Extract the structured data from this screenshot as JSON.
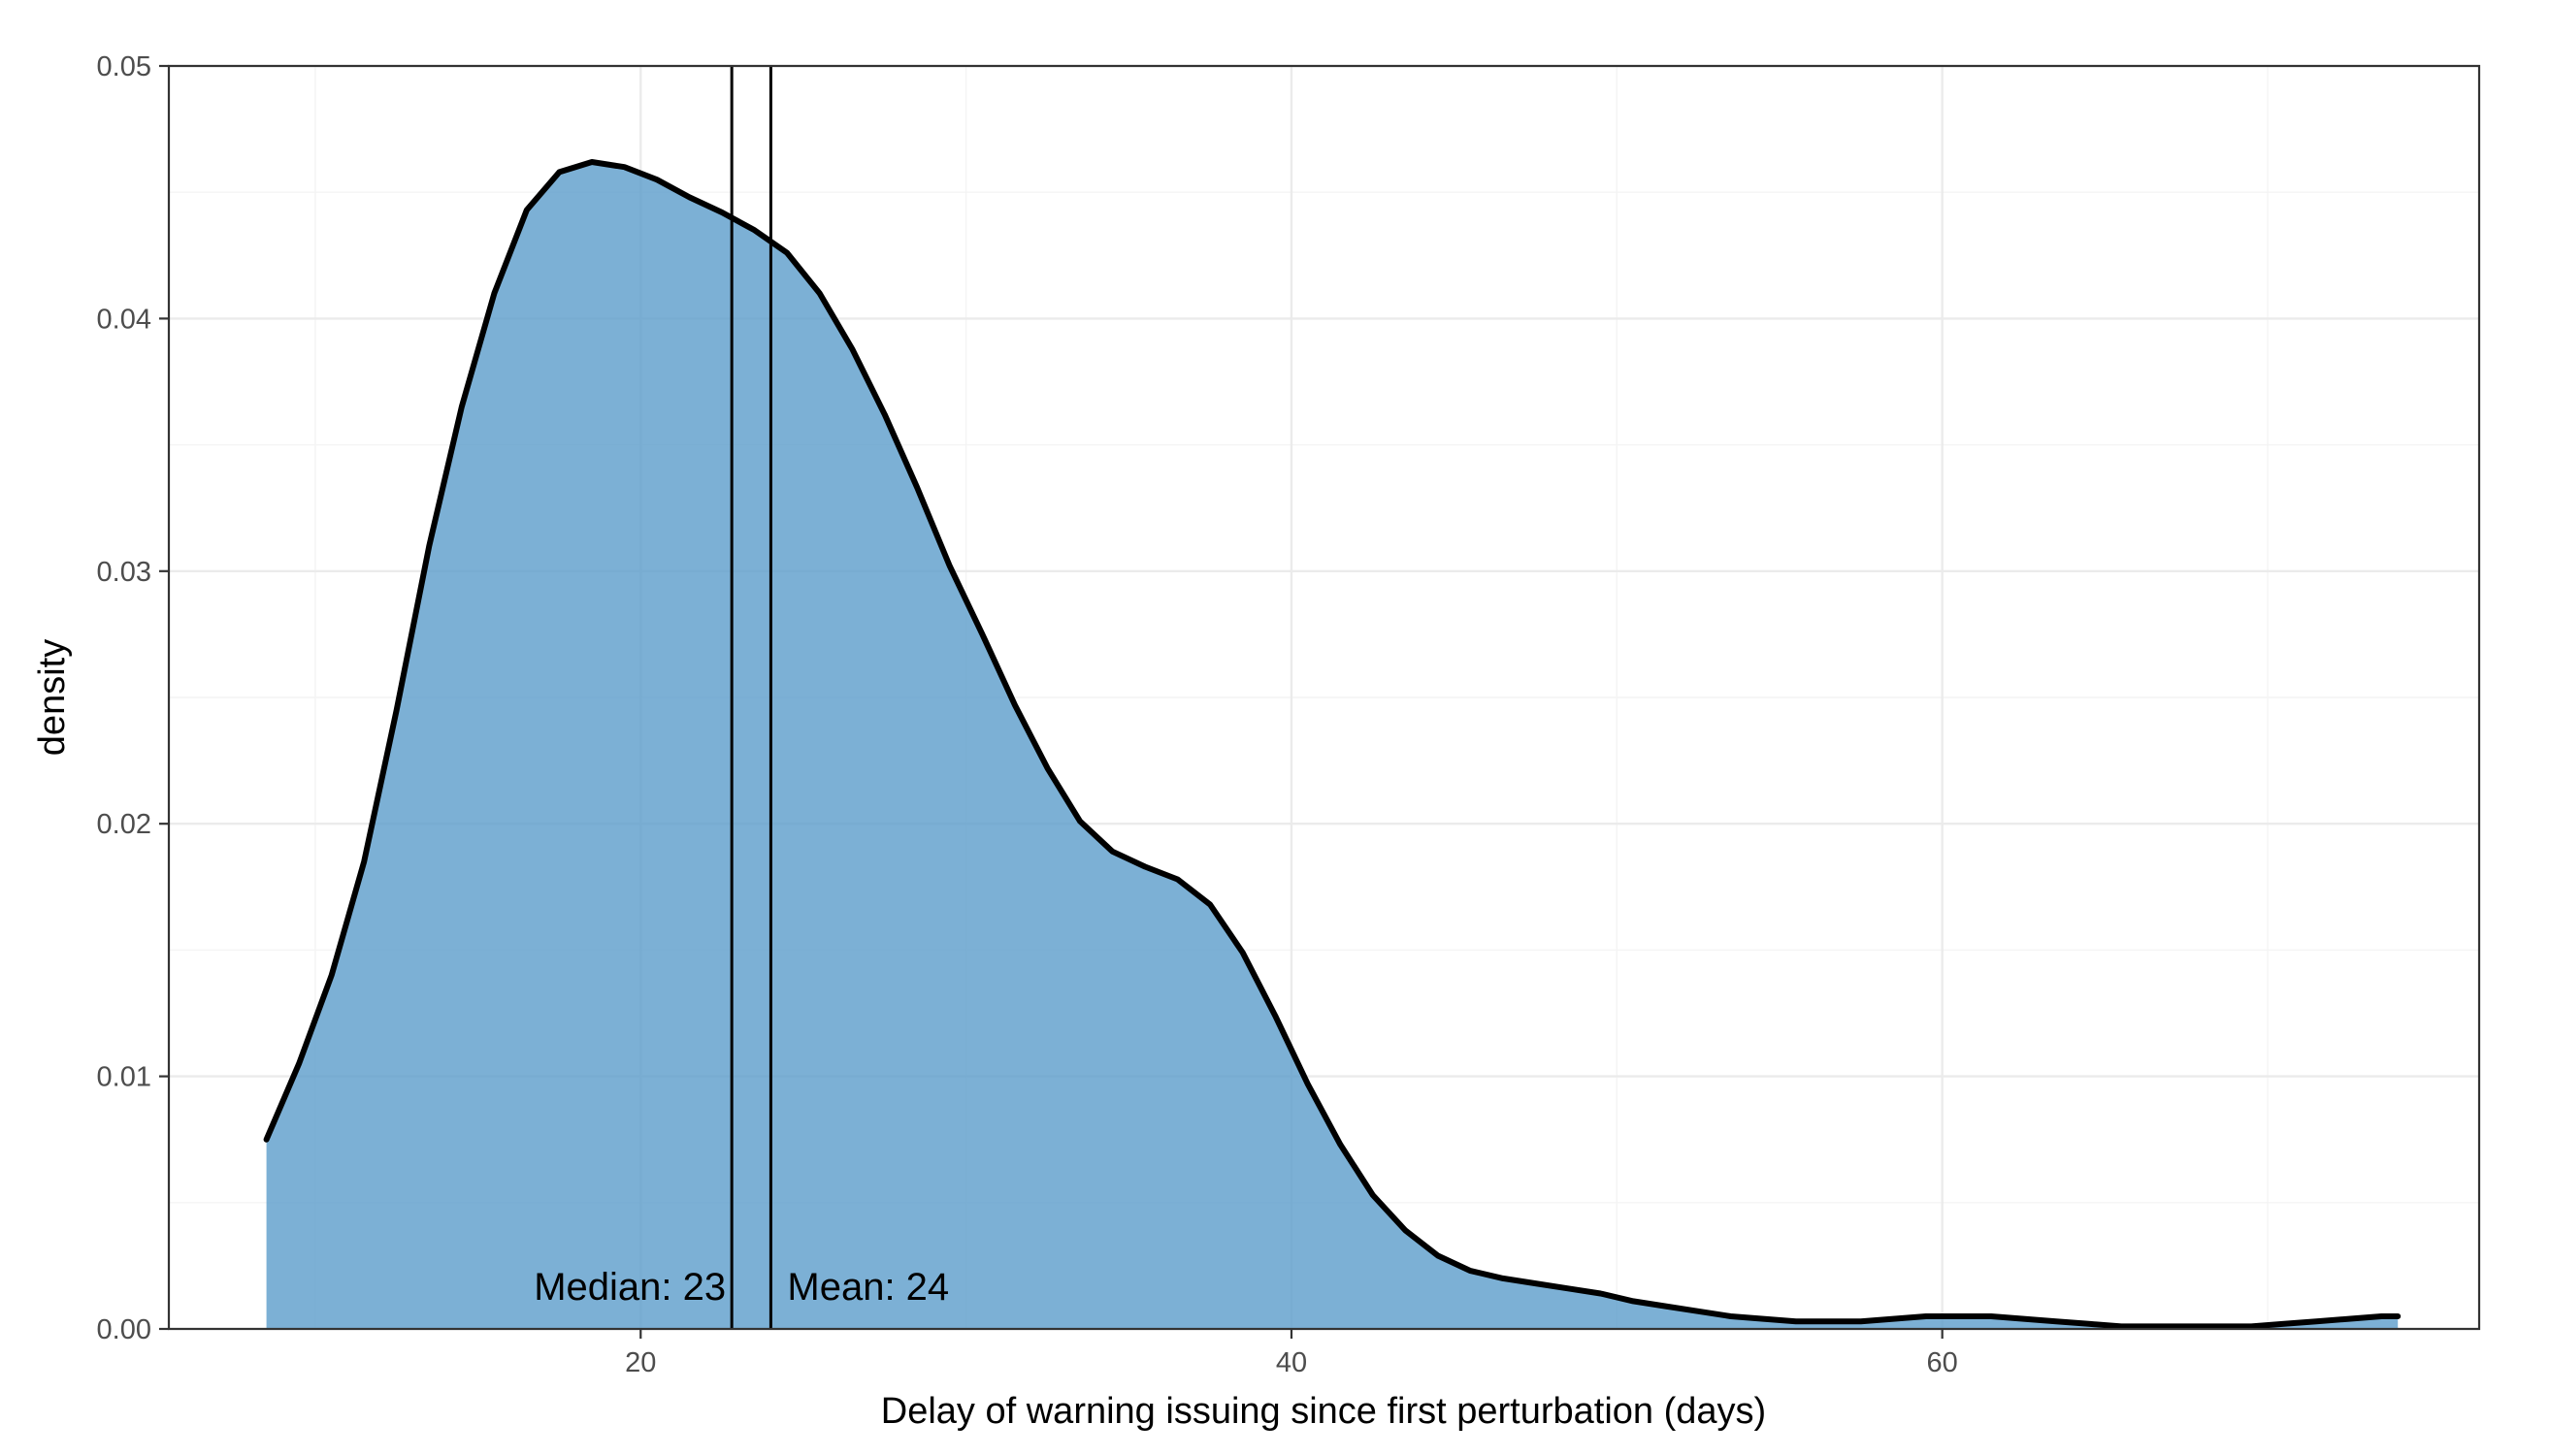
{
  "chart_data": {
    "type": "area",
    "title": "",
    "xlabel": "Delay of warning issuing since first perturbation (days)",
    "ylabel": "density",
    "xlim": [
      5.5,
      76.5
    ],
    "ylim": [
      0,
      0.05
    ],
    "x_ticks": [
      20,
      40,
      60
    ],
    "x_tick_labels": [
      "20",
      "40",
      "60"
    ],
    "y_ticks": [
      0,
      0.01,
      0.02,
      0.03,
      0.04,
      0.05
    ],
    "y_tick_labels": [
      "0.00",
      "0.01",
      "0.02",
      "0.03",
      "0.04",
      "0.05"
    ],
    "grid": true,
    "fill_color": "#5b9ccb",
    "line_color": "#000000",
    "series": [
      {
        "x": [
          8.5,
          9.5,
          10.5,
          11.5,
          12.5,
          13.5,
          14.5,
          15.5,
          16.5,
          17.5,
          18.5,
          19.5,
          20.5,
          21.5,
          22.5,
          23.5,
          24.5,
          25.5,
          26.5,
          27.5,
          28.5,
          29.5,
          30.5,
          31.5,
          32.5,
          33.5,
          34.5,
          35.5,
          36.5,
          37.5,
          38.5,
          39.5,
          40.5,
          41.5,
          42.5,
          43.5,
          44.5,
          45.5,
          46.5,
          47.5,
          48.5,
          49.5,
          50.5,
          51.5,
          52.5,
          53.5,
          54.5,
          55.5,
          56.5,
          57.5,
          58.5,
          59.5,
          60.5,
          61.5,
          62.5,
          63.5,
          64.5,
          65.5,
          66.5,
          67.5,
          68.5,
          69.5,
          70.5,
          71.5,
          72.5,
          73.5,
          74
        ],
        "y": [
          0.0075,
          0.0105,
          0.014,
          0.0185,
          0.0245,
          0.031,
          0.0365,
          0.041,
          0.0443,
          0.0458,
          0.0462,
          0.046,
          0.0455,
          0.0448,
          0.0442,
          0.0435,
          0.0426,
          0.041,
          0.0388,
          0.0362,
          0.0333,
          0.0302,
          0.0275,
          0.0247,
          0.0222,
          0.0201,
          0.0189,
          0.0183,
          0.0178,
          0.0168,
          0.0149,
          0.0124,
          0.0097,
          0.0073,
          0.0053,
          0.0039,
          0.0029,
          0.0023,
          0.002,
          0.0018,
          0.0016,
          0.0014,
          0.0011,
          0.0009,
          0.0007,
          0.0005,
          0.0004,
          0.0003,
          0.0003,
          0.0003,
          0.0004,
          0.0005,
          0.0005,
          0.0005,
          0.0004,
          0.0003,
          0.0002,
          0.0001,
          0.0001,
          0.0001,
          0.0001,
          0.0001,
          0.0002,
          0.0003,
          0.0004,
          0.0005,
          0.0005
        ]
      }
    ],
    "vlines": [
      {
        "x": 22.8,
        "label": "Median: 23",
        "anchor": "end"
      },
      {
        "x": 24.0,
        "label": "Mean: 24",
        "anchor": "start"
      }
    ]
  }
}
